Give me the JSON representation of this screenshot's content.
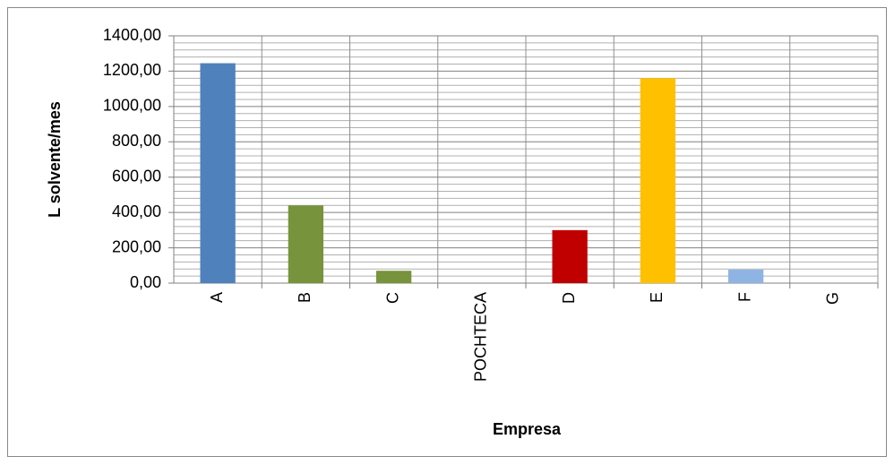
{
  "chart_data": {
    "type": "bar",
    "x_label": "Empresa",
    "y_label": "L solvente/mes",
    "categories": [
      "A",
      "B",
      "C",
      "POCHTECA",
      "D",
      "E",
      "F",
      "G"
    ],
    "values": [
      1245,
      440,
      70,
      0,
      300,
      1160,
      76,
      0
    ],
    "colors": [
      "#4f81bd",
      "#77933c",
      "#77933c",
      "#77933c",
      "#c00000",
      "#ffc000",
      "#8db4e2",
      "#4f81bd"
    ],
    "ylim": [
      0,
      1400
    ],
    "yticks": [
      {
        "value": 0,
        "label": "0,00"
      },
      {
        "value": 200,
        "label": "200,00"
      },
      {
        "value": 400,
        "label": "400,00"
      },
      {
        "value": 600,
        "label": "600,00"
      },
      {
        "value": 800,
        "label": "800,00"
      },
      {
        "value": 1000,
        "label": "1000,00"
      },
      {
        "value": 1200,
        "label": "1200,00"
      },
      {
        "value": 1400,
        "label": "1400,00"
      }
    ],
    "grid": true,
    "minor_grid": true
  }
}
